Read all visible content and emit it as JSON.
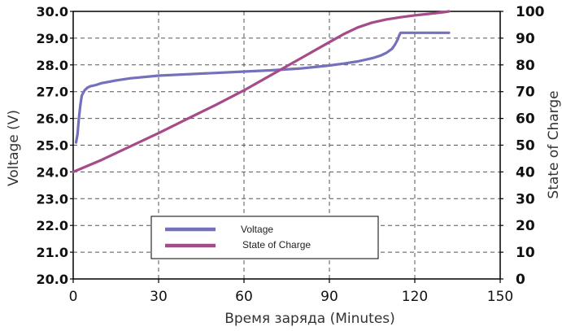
{
  "chart_data": {
    "type": "line",
    "xlabel": "Время заряда (Minutes)",
    "ylabel_left": "Voltage (V)",
    "ylabel_right": "State of Charge",
    "xlim": [
      0,
      150
    ],
    "ylim_left": [
      20.0,
      30.0
    ],
    "ylim_right": [
      0,
      100
    ],
    "x_ticks": [
      "0",
      "30",
      "60",
      "90",
      "120",
      "150"
    ],
    "y_left_ticks": [
      "20.0",
      "21.0",
      "22.0",
      "23.0",
      "24.0",
      "25.0",
      "26.0",
      "27.0",
      "28.0",
      "29.0",
      "30.0"
    ],
    "y_right_ticks": [
      "0",
      "10",
      "20",
      "30",
      "40",
      "50",
      "60",
      "70",
      "80",
      "90",
      "100"
    ],
    "grid": true,
    "legend_position": "bottom-center",
    "series": [
      {
        "name": "Voltage",
        "axis": "left",
        "color": "#7570bb",
        "x": [
          1,
          1.5,
          2,
          2.5,
          3,
          4,
          5,
          6,
          8,
          10,
          15,
          20,
          30,
          40,
          50,
          60,
          70,
          80,
          85,
          90,
          95,
          100,
          105,
          108,
          110,
          112,
          113,
          114,
          114.5,
          115,
          120,
          125,
          130,
          132
        ],
        "y": [
          25.1,
          25.4,
          26.0,
          26.5,
          26.85,
          27.05,
          27.15,
          27.2,
          27.25,
          27.32,
          27.42,
          27.5,
          27.6,
          27.65,
          27.7,
          27.75,
          27.8,
          27.87,
          27.92,
          27.98,
          28.05,
          28.13,
          28.25,
          28.35,
          28.45,
          28.6,
          28.75,
          28.95,
          29.1,
          29.2,
          29.2,
          29.2,
          29.2,
          29.2
        ]
      },
      {
        "name": "State of Charge",
        "axis": "right",
        "color": "#a64b8a",
        "x": [
          0,
          10,
          20,
          30,
          40,
          50,
          60,
          70,
          80,
          90,
          95,
          100,
          105,
          110,
          115,
          120,
          125,
          130,
          132
        ],
        "y": [
          40,
          44.5,
          49.5,
          54.5,
          59.8,
          65,
          70.5,
          76.5,
          82.5,
          88.5,
          91.5,
          94,
          95.8,
          97,
          97.8,
          98.5,
          99.1,
          99.7,
          100
        ]
      }
    ]
  }
}
